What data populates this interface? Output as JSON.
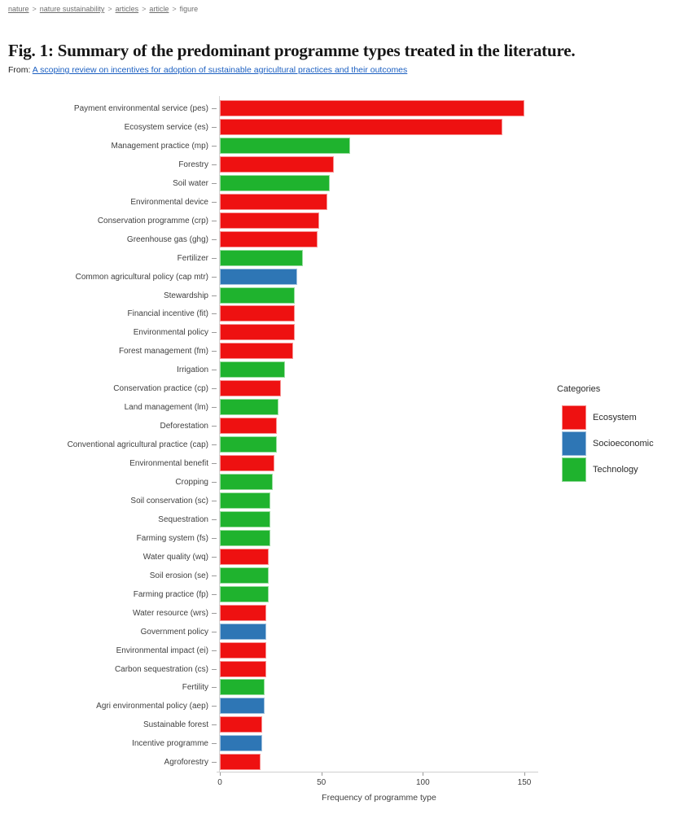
{
  "page": {
    "breadcrumb": [
      {
        "label": "nature"
      },
      {
        "label": "nature sustainability"
      },
      {
        "label": "articles"
      },
      {
        "label": "article"
      },
      {
        "label": "figure"
      }
    ],
    "title": "Fig. 1: Summary of the predominant programme types treated in the literature.",
    "from_prefix": "From:",
    "from_link": "A scoping review on incentives for adoption of sustainable agricultural practices and their outcomes"
  },
  "colors": {
    "ecosystem": "#ee1111",
    "socioeconomic": "#2e76b5",
    "technology": "#1fb32e"
  },
  "chart_data": {
    "type": "bar",
    "orientation": "horizontal",
    "xlabel": "Frequency of programme type",
    "x_ticks": [
      0,
      50,
      100,
      150
    ],
    "xlim": [
      0,
      157
    ],
    "grid": false,
    "legend": {
      "title": "Categories",
      "position": "right",
      "entries": [
        {
          "label": "Ecosystem",
          "category": "ecosystem"
        },
        {
          "label": "Socioeconomic",
          "category": "socioeconomic"
        },
        {
          "label": "Technology",
          "category": "technology"
        }
      ]
    },
    "bars": [
      {
        "label": "Payment environmental service (pes)",
        "category": "ecosystem",
        "value": 150
      },
      {
        "label": "Ecosystem service (es)",
        "category": "ecosystem",
        "value": 139
      },
      {
        "label": "Management practice (mp)",
        "category": "technology",
        "value": 64
      },
      {
        "label": "Forestry",
        "category": "ecosystem",
        "value": 56
      },
      {
        "label": "Soil water",
        "category": "technology",
        "value": 54
      },
      {
        "label": "Environmental device",
        "category": "ecosystem",
        "value": 53
      },
      {
        "label": "Conservation programme (crp)",
        "category": "ecosystem",
        "value": 49
      },
      {
        "label": "Greenhouse gas (ghg)",
        "category": "ecosystem",
        "value": 48
      },
      {
        "label": "Fertilizer",
        "category": "technology",
        "value": 41
      },
      {
        "label": "Common agricultural policy (cap mtr)",
        "category": "socioeconomic",
        "value": 38
      },
      {
        "label": "Stewardship",
        "category": "technology",
        "value": 37
      },
      {
        "label": "Financial incentive (fit)",
        "category": "ecosystem",
        "value": 37
      },
      {
        "label": "Environmental policy",
        "category": "ecosystem",
        "value": 37
      },
      {
        "label": "Forest management (fm)",
        "category": "ecosystem",
        "value": 36
      },
      {
        "label": "Irrigation",
        "category": "technology",
        "value": 32
      },
      {
        "label": "Conservation practice (cp)",
        "category": "ecosystem",
        "value": 30
      },
      {
        "label": "Land management (lm)",
        "category": "technology",
        "value": 29
      },
      {
        "label": "Deforestation",
        "category": "ecosystem",
        "value": 28
      },
      {
        "label": "Conventional agricultural practice (cap)",
        "category": "technology",
        "value": 28
      },
      {
        "label": "Environmental benefit",
        "category": "ecosystem",
        "value": 27
      },
      {
        "label": "Cropping",
        "category": "technology",
        "value": 26
      },
      {
        "label": "Soil conservation (sc)",
        "category": "technology",
        "value": 25
      },
      {
        "label": "Sequestration",
        "category": "technology",
        "value": 25
      },
      {
        "label": "Farming system (fs)",
        "category": "technology",
        "value": 25
      },
      {
        "label": "Water quality (wq)",
        "category": "ecosystem",
        "value": 24
      },
      {
        "label": "Soil erosion (se)",
        "category": "technology",
        "value": 24
      },
      {
        "label": "Farming practice (fp)",
        "category": "technology",
        "value": 24
      },
      {
        "label": "Water resource (wrs)",
        "category": "ecosystem",
        "value": 23
      },
      {
        "label": "Government policy",
        "category": "socioeconomic",
        "value": 23
      },
      {
        "label": "Environmental impact (ei)",
        "category": "ecosystem",
        "value": 23
      },
      {
        "label": "Carbon sequestration (cs)",
        "category": "ecosystem",
        "value": 23
      },
      {
        "label": "Fertility",
        "category": "technology",
        "value": 22
      },
      {
        "label": "Agri environmental policy (aep)",
        "category": "socioeconomic",
        "value": 22
      },
      {
        "label": "Sustainable forest",
        "category": "ecosystem",
        "value": 21
      },
      {
        "label": "Incentive programme",
        "category": "socioeconomic",
        "value": 21
      },
      {
        "label": "Agroforestry",
        "category": "ecosystem",
        "value": 20
      }
    ]
  }
}
